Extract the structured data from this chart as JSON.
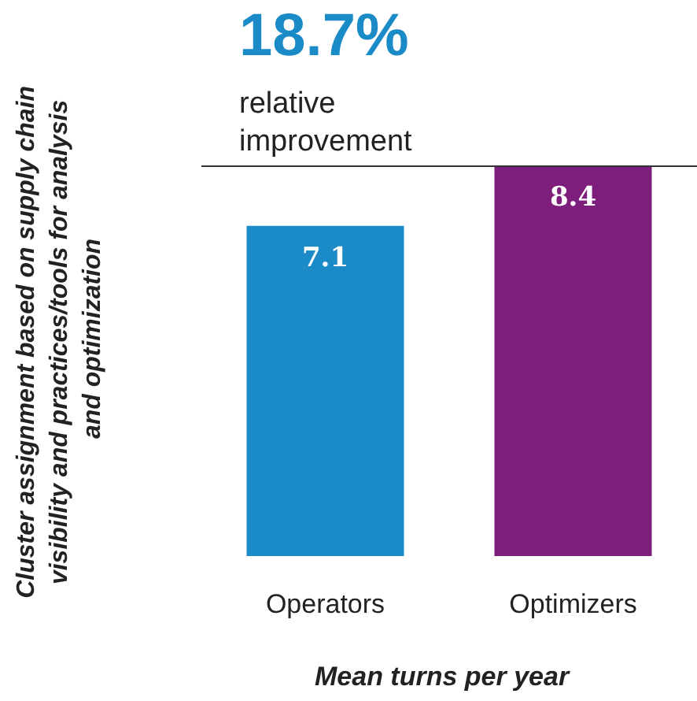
{
  "chart_data": {
    "type": "bar",
    "categories": [
      "Operators",
      "Optimizers"
    ],
    "values": [
      7.1,
      8.4
    ],
    "colors": [
      "#1b8bc7",
      "#7d1e7d"
    ],
    "data_labels": true,
    "ylabel": "Cluster assignment based on supply chain visibility and practices/tools for analysis and optimization",
    "xlabel": "Mean turns per year",
    "annotations": [
      "18.7%",
      "relative improvement"
    ],
    "ref_lines": [
      {
        "axis": "y",
        "value": 8.4,
        "label": null,
        "color": "#333333"
      }
    ],
    "tick_labels": "x"
  }
}
